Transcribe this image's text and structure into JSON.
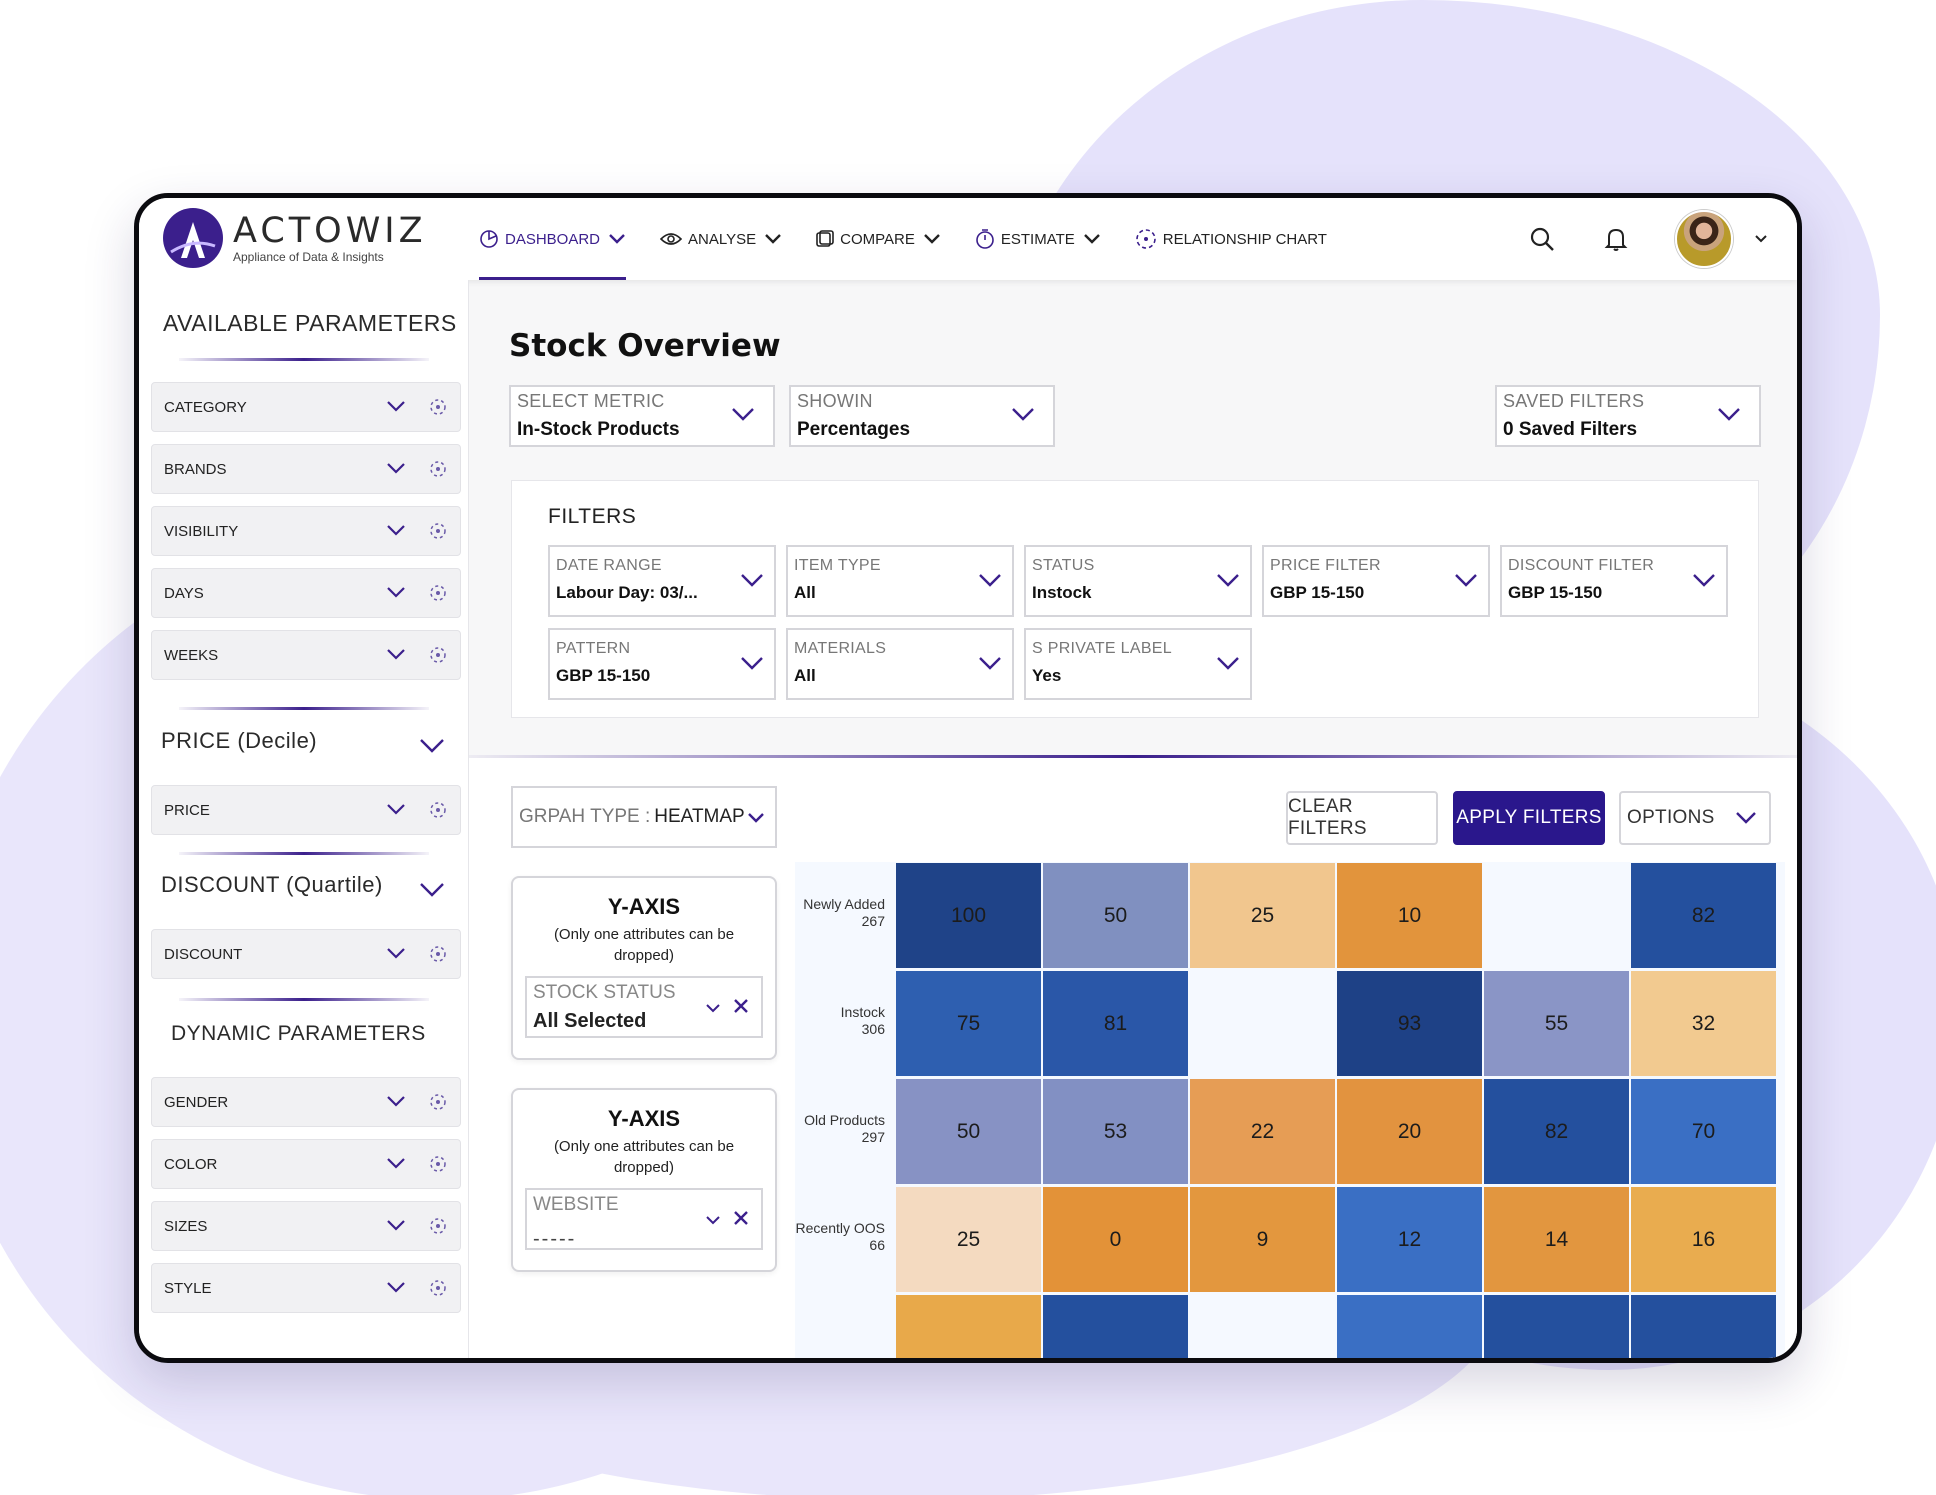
{
  "brand": {
    "name": "ACTOWIZ",
    "tagline": "Appliance of Data & Insights"
  },
  "nav": [
    {
      "label": "DASHBOARD",
      "icon": "dashboard-icon",
      "active": true
    },
    {
      "label": "ANALYSE",
      "icon": "eye-icon"
    },
    {
      "label": "COMPARE",
      "icon": "compare-icon"
    },
    {
      "label": "ESTIMATE",
      "icon": "timer-icon"
    },
    {
      "label": "RELATIONSHIP CHART",
      "icon": "relationship-icon"
    }
  ],
  "sidebar": {
    "available_title": "AVAILABLE PARAMETERS",
    "available": [
      "CATEGORY",
      "BRANDS",
      "VISIBILITY",
      "DAYS",
      "WEEKS"
    ],
    "price_title": "PRICE (Decile)",
    "price": [
      "PRICE"
    ],
    "discount_title": "DISCOUNT (Quartile)",
    "discount": [
      "DISCOUNT"
    ],
    "dynamic_title": "DYNAMIC PARAMETERS",
    "dynamic": [
      "GENDER",
      "COLOR",
      "SIZES",
      "STYLE"
    ]
  },
  "main": {
    "title": "Stock Overview",
    "metric": {
      "label": "SELECT METRIC",
      "value": "In-Stock Products"
    },
    "shown": {
      "label": "SHOWIN",
      "value": "Percentages"
    },
    "saved": {
      "label": "SAVED FILTERS",
      "value": "0 Saved Filters"
    }
  },
  "filters": {
    "title": "FILTERS",
    "items": [
      {
        "label": "DATE RANGE",
        "value": "Labour Day: 03/..."
      },
      {
        "label": "ITEM TYPE",
        "value": "All"
      },
      {
        "label": "STATUS",
        "value": "Instock"
      },
      {
        "label": "PRICE FILTER",
        "value": "GBP 15-150"
      },
      {
        "label": "DISCOUNT FILTER",
        "value": "GBP 15-150"
      },
      {
        "label": "PATTERN",
        "value": "GBP 15-150"
      },
      {
        "label": "MATERIALS",
        "value": "All"
      },
      {
        "label": "S PRIVATE LABEL",
        "value": "Yes"
      }
    ]
  },
  "graph": {
    "type_label": "GRPAH TYPE :",
    "type_value": "HEATMAP",
    "clear": "CLEAR FILTERS",
    "apply": "APPLY FILTERS",
    "options": "OPTIONS"
  },
  "yaxis": [
    {
      "title": "Y-AXIS",
      "note": "(Only one attributes can be dropped)",
      "drop_label": "STOCK STATUS",
      "drop_value": "All Selected"
    },
    {
      "title": "Y-AXIS",
      "note": "(Only one attributes can be dropped)",
      "drop_label": "WEBSITE",
      "drop_value": "-----"
    }
  ],
  "chart_data": {
    "type": "heatmap",
    "rows": [
      {
        "label": "Newly Added",
        "count": "267",
        "values": [
          100,
          50,
          25,
          10,
          null,
          82
        ],
        "colors": [
          "#1f4388",
          "#8090c0",
          "#f1c68e",
          "#e2943c",
          "#f5f9ff",
          "#24509e"
        ]
      },
      {
        "label": "Instock",
        "count": "306",
        "values": [
          75,
          81,
          null,
          93,
          55,
          32
        ],
        "colors": [
          "#2e5fb0",
          "#2a57a8",
          "#f5f9ff",
          "#1e4186",
          "#8a95c6",
          "#f2ca90"
        ]
      },
      {
        "label": "Old Products",
        "count": "297",
        "values": [
          50,
          53,
          22,
          20,
          82,
          70
        ],
        "colors": [
          "#8792c4",
          "#8290c3",
          "#e69d55",
          "#e2933f",
          "#24509e",
          "#3a6fc4"
        ]
      },
      {
        "label": "Recently OOS",
        "count": "66",
        "values": [
          25,
          0,
          9,
          12,
          14,
          16
        ],
        "colors": [
          "#f4dac0",
          "#e39238",
          "#e3973e",
          "#3a6fc4",
          "#e2963f",
          "#e9ac4f"
        ]
      },
      {
        "label": "",
        "count": "",
        "values": [
          null,
          null,
          null,
          null,
          null,
          null
        ],
        "colors": [
          "#e8a94a",
          "#24509e",
          "#f5f9ff",
          "#3a6fc4",
          "#24509e",
          "#24509e"
        ]
      }
    ]
  },
  "colors": {
    "accent": "#3b1f8c",
    "primary_button": "#2a178c"
  }
}
